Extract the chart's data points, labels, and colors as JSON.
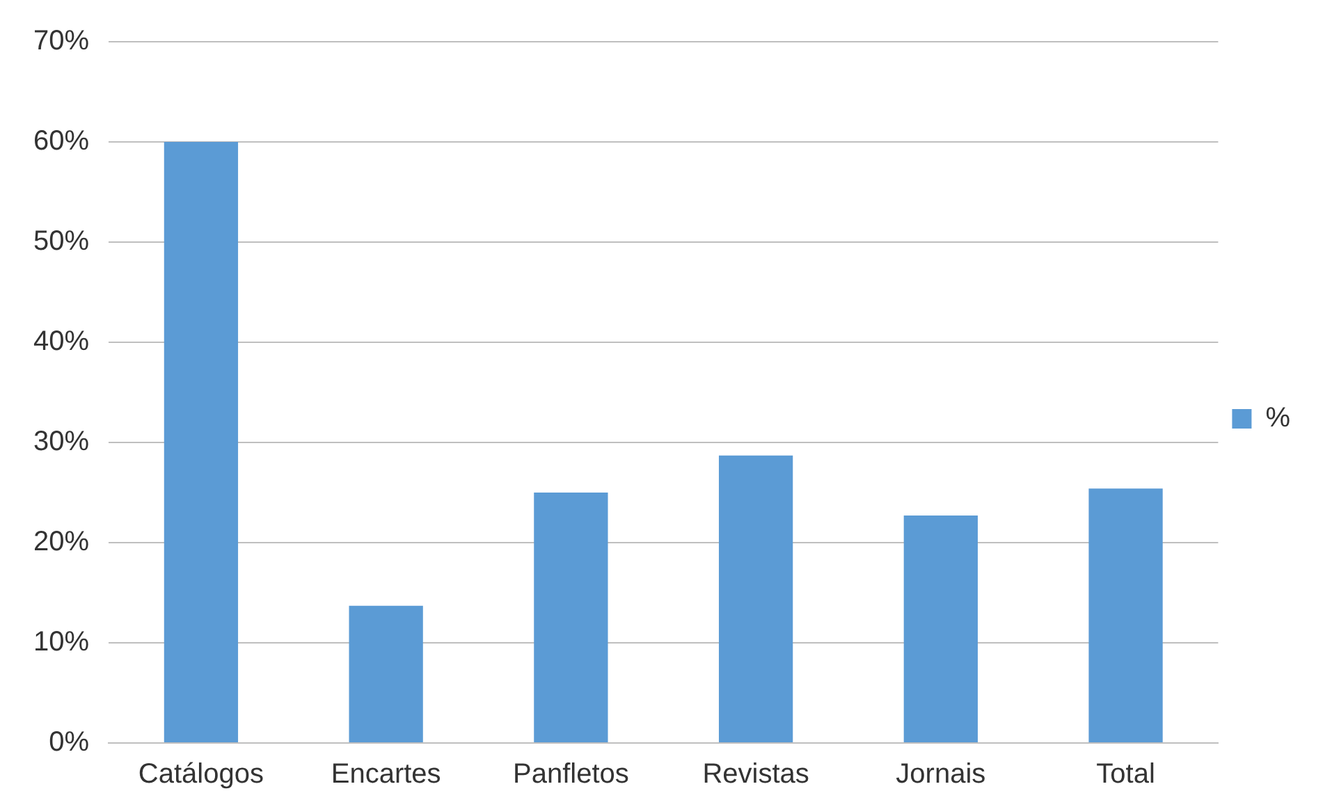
{
  "chart_data": {
    "type": "bar",
    "categories": [
      "Catálogos",
      "Encartes",
      "Panfletos",
      "Revistas",
      "Jornais",
      "Total"
    ],
    "series": [
      {
        "name": "%",
        "color": "#5b9bd5",
        "values": [
          60,
          13.7,
          25,
          28.7,
          22.7,
          25.4
        ]
      }
    ],
    "ylim": [
      0,
      70
    ],
    "yticks": [
      {
        "value": 0,
        "label": "0%"
      },
      {
        "value": 10,
        "label": "10%"
      },
      {
        "value": 20,
        "label": "20%"
      },
      {
        "value": 30,
        "label": "30%"
      },
      {
        "value": 40,
        "label": "40%"
      },
      {
        "value": 50,
        "label": "50%"
      },
      {
        "value": 60,
        "label": "60%"
      },
      {
        "value": 70,
        "label": "70%"
      }
    ],
    "grid": "y",
    "legend": "right"
  }
}
